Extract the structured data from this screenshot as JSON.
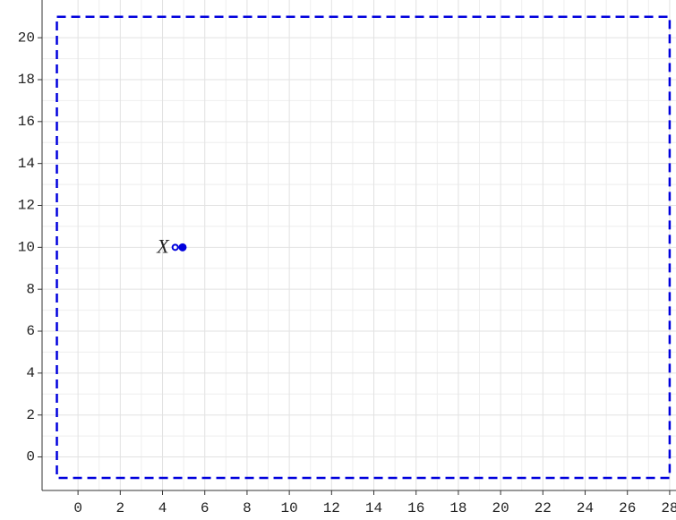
{
  "chart_data": {
    "type": "scatter",
    "xlim": [
      -1.7,
      28.3
    ],
    "ylim": [
      -1.6,
      21.8
    ],
    "xticks": [
      0,
      2,
      4,
      6,
      8,
      10,
      12,
      14,
      16,
      18,
      20,
      22,
      24,
      26,
      28
    ],
    "yticks": [
      0,
      2,
      4,
      6,
      8,
      10,
      12,
      14,
      16,
      18,
      20
    ],
    "grid": true,
    "rectangle": {
      "x": [
        -1,
        28
      ],
      "y": [
        -1,
        21
      ],
      "color": "#0000dd",
      "dashed": true
    },
    "series": [
      {
        "name": "X",
        "color": "#0000dd",
        "x": [
          4.6,
          4.95
        ],
        "values": [
          10,
          10
        ],
        "markers": [
          "open",
          "filled"
        ]
      }
    ]
  }
}
